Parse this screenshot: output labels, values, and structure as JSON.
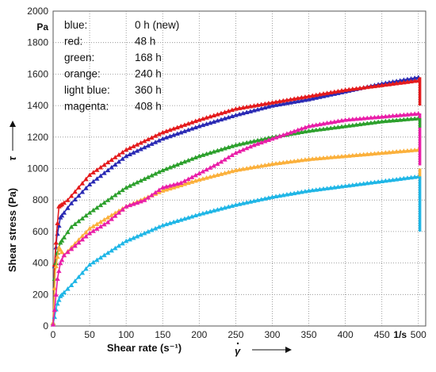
{
  "chart_data": {
    "type": "scatter",
    "title": "",
    "xlabel": "Shear rate (s⁻¹)",
    "ylabel": "Shear stress (Pa)",
    "x_unit_label": "1/s",
    "y_unit_label": "Pa",
    "xlim": [
      0,
      510
    ],
    "ylim": [
      0,
      2000
    ],
    "x_ticks": [
      "0",
      "50",
      "100",
      "150",
      "200",
      "250",
      "300",
      "350",
      "400",
      "450",
      "500"
    ],
    "y_ticks": [
      "0",
      "200",
      "400",
      "600",
      "800",
      "1000",
      "1200",
      "1400",
      "1600",
      "1800",
      "2000"
    ],
    "grid": "dotted",
    "legend_position": "top-left",
    "legend": [
      {
        "color_name": "blue:",
        "time": "0 h (new)"
      },
      {
        "color_name": "red:",
        "time": "48 h"
      },
      {
        "color_name": "green:",
        "time": "168 h"
      },
      {
        "color_name": "orange:",
        "time": "240 h"
      },
      {
        "color_name": "light blue:",
        "time": "360 h"
      },
      {
        "color_name": "magenta:",
        "time": "408 h"
      }
    ],
    "series": [
      {
        "color": "#2a2ab4",
        "points": [
          [
            0,
            20
          ],
          [
            2,
            380
          ],
          [
            5,
            560
          ],
          [
            10,
            690
          ],
          [
            25,
            780
          ],
          [
            50,
            900
          ],
          [
            100,
            1080
          ],
          [
            150,
            1190
          ],
          [
            200,
            1270
          ],
          [
            250,
            1340
          ],
          [
            300,
            1400
          ],
          [
            350,
            1440
          ],
          [
            400,
            1490
          ],
          [
            450,
            1540
          ],
          [
            500,
            1580
          ]
        ]
      },
      {
        "color": "#e41a1c",
        "points": [
          [
            0,
            20
          ],
          [
            2,
            390
          ],
          [
            5,
            600
          ],
          [
            8,
            760
          ],
          [
            20,
            800
          ],
          [
            50,
            960
          ],
          [
            100,
            1120
          ],
          [
            150,
            1230
          ],
          [
            200,
            1310
          ],
          [
            250,
            1380
          ],
          [
            300,
            1420
          ],
          [
            350,
            1460
          ],
          [
            400,
            1500
          ],
          [
            450,
            1530
          ],
          [
            500,
            1560
          ]
        ]
      },
      {
        "color": "#2ca02c",
        "points": [
          [
            0,
            20
          ],
          [
            2,
            300
          ],
          [
            5,
            450
          ],
          [
            10,
            530
          ],
          [
            25,
            630
          ],
          [
            50,
            720
          ],
          [
            100,
            880
          ],
          [
            150,
            990
          ],
          [
            200,
            1080
          ],
          [
            250,
            1150
          ],
          [
            300,
            1200
          ],
          [
            350,
            1240
          ],
          [
            400,
            1270
          ],
          [
            450,
            1300
          ],
          [
            500,
            1320
          ]
        ]
      },
      {
        "color": "#fbb03b",
        "points": [
          [
            0,
            20
          ],
          [
            3,
            350
          ],
          [
            8,
            500
          ],
          [
            12,
            470
          ],
          [
            15,
            450
          ],
          [
            25,
            500
          ],
          [
            50,
            620
          ],
          [
            100,
            760
          ],
          [
            150,
            860
          ],
          [
            200,
            930
          ],
          [
            250,
            990
          ],
          [
            300,
            1030
          ],
          [
            350,
            1060
          ],
          [
            400,
            1080
          ],
          [
            450,
            1100
          ],
          [
            500,
            1120
          ]
        ]
      },
      {
        "color": "#1fb6e6",
        "points": [
          [
            0,
            10
          ],
          [
            5,
            130
          ],
          [
            10,
            190
          ],
          [
            25,
            260
          ],
          [
            50,
            390
          ],
          [
            100,
            540
          ],
          [
            150,
            640
          ],
          [
            200,
            710
          ],
          [
            250,
            770
          ],
          [
            300,
            820
          ],
          [
            350,
            860
          ],
          [
            400,
            890
          ],
          [
            450,
            920
          ],
          [
            500,
            950
          ]
        ]
      },
      {
        "color": "#e91ea8",
        "points": [
          [
            0,
            10
          ],
          [
            3,
            150
          ],
          [
            6,
            300
          ],
          [
            10,
            400
          ],
          [
            15,
            450
          ],
          [
            25,
            490
          ],
          [
            50,
            590
          ],
          [
            75,
            660
          ],
          [
            100,
            760
          ],
          [
            125,
            800
          ],
          [
            150,
            880
          ],
          [
            175,
            910
          ],
          [
            200,
            970
          ],
          [
            225,
            1030
          ],
          [
            250,
            1100
          ],
          [
            275,
            1150
          ],
          [
            300,
            1190
          ],
          [
            325,
            1230
          ],
          [
            350,
            1270
          ],
          [
            375,
            1290
          ],
          [
            400,
            1310
          ],
          [
            425,
            1320
          ],
          [
            450,
            1330
          ],
          [
            475,
            1340
          ],
          [
            500,
            1350
          ]
        ]
      }
    ],
    "drop_lines": [
      {
        "color": "#e41a1c",
        "x": 502,
        "y_from": 1580,
        "y_to": 1400
      },
      {
        "color": "#e91ea8",
        "x": 502,
        "y_from": 1350,
        "y_to": 1020
      },
      {
        "color": "#2ca02c",
        "x": 502,
        "y_from": 1320,
        "y_to": 1260
      },
      {
        "color": "#fbb03b",
        "x": 502,
        "y_from": 1000,
        "y_to": 930
      },
      {
        "color": "#1fb6e6",
        "x": 502,
        "y_from": 950,
        "y_to": 600
      }
    ]
  }
}
